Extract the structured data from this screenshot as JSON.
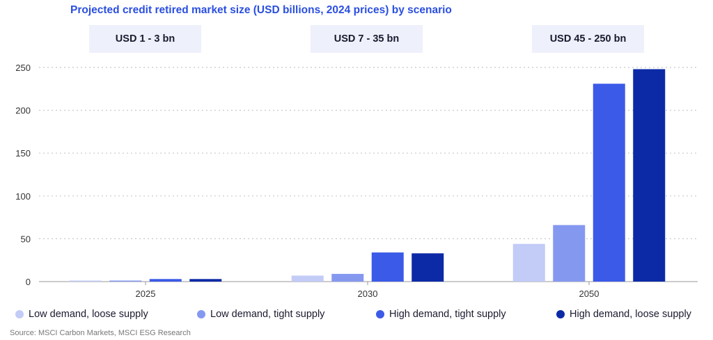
{
  "title": "Projected credit retired market size (USD billions, 2024 prices) by scenario",
  "range_labels": [
    "USD 1 - 3 bn",
    "USD 7 - 35 bn",
    "USD 45 - 250 bn"
  ],
  "source": "Source: MSCI Carbon Markets, MSCI ESG Research",
  "colors": {
    "low_loose": "#c3cbf7",
    "low_tight": "#8598f0",
    "high_tight": "#3b5ae8",
    "high_loose": "#0c2aa6"
  },
  "chart_data": {
    "type": "bar",
    "categories": [
      "2025",
      "2030",
      "2050"
    ],
    "series": [
      {
        "name": "Low demand, loose supply",
        "color": "#c3cbf7",
        "values": [
          0.5,
          7,
          44
        ]
      },
      {
        "name": "Low demand, tight supply",
        "color": "#8598f0",
        "values": [
          1,
          9,
          66
        ]
      },
      {
        "name": "High demand, tight supply",
        "color": "#3b5ae8",
        "values": [
          3,
          34,
          231
        ]
      },
      {
        "name": "High demand, loose supply",
        "color": "#0c2aa6",
        "values": [
          3,
          33,
          248
        ]
      }
    ],
    "ylim": [
      0,
      250
    ],
    "yticks": [
      0,
      50,
      100,
      150,
      200,
      250
    ],
    "grid": true,
    "legend": "bottom"
  }
}
